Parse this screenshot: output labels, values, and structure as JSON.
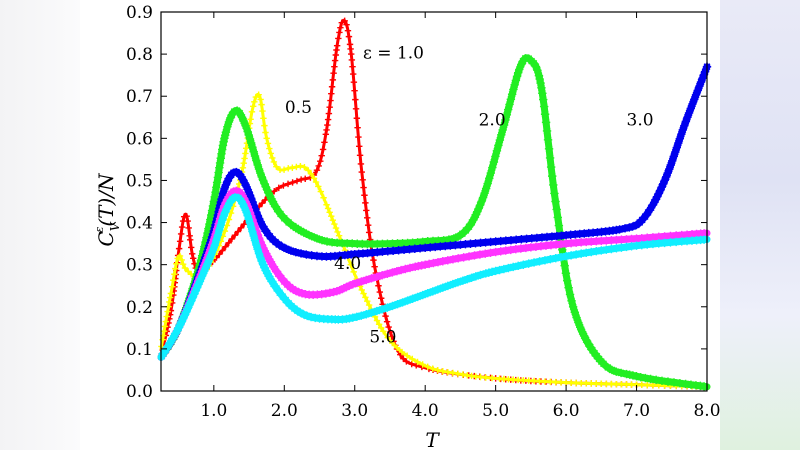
{
  "chart_data": {
    "type": "line",
    "title": "",
    "xlabel": "T",
    "ylabel": "C_V^ε(T)/N",
    "xlim": [
      0.25,
      8.0
    ],
    "ylim": [
      0.0,
      0.9
    ],
    "xticks": [
      "1.0",
      "2.0",
      "3.0",
      "4.0",
      "5.0",
      "6.0",
      "7.0",
      "8.0"
    ],
    "yticks": [
      "0.0",
      "0.1",
      "0.2",
      "0.3",
      "0.4",
      "0.5",
      "0.6",
      "0.7",
      "0.8",
      "0.9"
    ],
    "series": [
      {
        "name": "ε = 1.0",
        "color": "#ff0000",
        "marker": "plus",
        "points": [
          [
            0.25,
            0.08
          ],
          [
            0.4,
            0.2
          ],
          [
            0.5,
            0.33
          ],
          [
            0.6,
            0.42
          ],
          [
            0.7,
            0.32
          ],
          [
            0.8,
            0.28
          ],
          [
            1.0,
            0.31
          ],
          [
            1.3,
            0.37
          ],
          [
            1.6,
            0.43
          ],
          [
            1.9,
            0.48
          ],
          [
            2.2,
            0.5
          ],
          [
            2.45,
            0.52
          ],
          [
            2.6,
            0.62
          ],
          [
            2.75,
            0.82
          ],
          [
            2.85,
            0.88
          ],
          [
            2.95,
            0.8
          ],
          [
            3.1,
            0.52
          ],
          [
            3.3,
            0.28
          ],
          [
            3.6,
            0.1
          ],
          [
            4.0,
            0.055
          ],
          [
            5.0,
            0.03
          ],
          [
            6.0,
            0.02
          ],
          [
            7.0,
            0.015
          ],
          [
            8.0,
            0.01
          ]
        ]
      },
      {
        "name": "0.5",
        "color": "#ffff00",
        "marker": "plus",
        "points": [
          [
            0.25,
            0.1
          ],
          [
            0.4,
            0.24
          ],
          [
            0.5,
            0.32
          ],
          [
            0.6,
            0.29
          ],
          [
            0.8,
            0.27
          ],
          [
            1.0,
            0.32
          ],
          [
            1.2,
            0.4
          ],
          [
            1.4,
            0.52
          ],
          [
            1.55,
            0.67
          ],
          [
            1.65,
            0.7
          ],
          [
            1.75,
            0.6
          ],
          [
            1.9,
            0.53
          ],
          [
            2.1,
            0.53
          ],
          [
            2.3,
            0.53
          ],
          [
            2.5,
            0.48
          ],
          [
            2.8,
            0.36
          ],
          [
            3.1,
            0.24
          ],
          [
            3.5,
            0.12
          ],
          [
            4.0,
            0.06
          ],
          [
            4.5,
            0.04
          ],
          [
            5.0,
            0.03
          ],
          [
            6.0,
            0.02
          ],
          [
            7.0,
            0.015
          ],
          [
            8.0,
            0.01
          ]
        ]
      },
      {
        "name": "2.0",
        "color": "#22ee22",
        "marker": "star",
        "points": [
          [
            0.25,
            0.08
          ],
          [
            0.5,
            0.15
          ],
          [
            0.8,
            0.3
          ],
          [
            1.0,
            0.45
          ],
          [
            1.15,
            0.6
          ],
          [
            1.3,
            0.665
          ],
          [
            1.45,
            0.63
          ],
          [
            1.7,
            0.5
          ],
          [
            2.0,
            0.41
          ],
          [
            2.5,
            0.36
          ],
          [
            3.0,
            0.35
          ],
          [
            3.5,
            0.35
          ],
          [
            4.0,
            0.355
          ],
          [
            4.5,
            0.37
          ],
          [
            4.8,
            0.45
          ],
          [
            5.1,
            0.62
          ],
          [
            5.35,
            0.77
          ],
          [
            5.5,
            0.785
          ],
          [
            5.65,
            0.72
          ],
          [
            5.85,
            0.45
          ],
          [
            6.1,
            0.2
          ],
          [
            6.5,
            0.07
          ],
          [
            7.0,
            0.035
          ],
          [
            8.0,
            0.01
          ]
        ]
      },
      {
        "name": "3.0",
        "color": "#0000ee",
        "marker": "star",
        "points": [
          [
            0.25,
            0.08
          ],
          [
            0.5,
            0.15
          ],
          [
            0.8,
            0.28
          ],
          [
            1.0,
            0.38
          ],
          [
            1.15,
            0.48
          ],
          [
            1.3,
            0.52
          ],
          [
            1.45,
            0.49
          ],
          [
            1.7,
            0.39
          ],
          [
            2.0,
            0.34
          ],
          [
            2.5,
            0.32
          ],
          [
            3.0,
            0.325
          ],
          [
            4.0,
            0.34
          ],
          [
            5.0,
            0.355
          ],
          [
            6.0,
            0.37
          ],
          [
            6.8,
            0.385
          ],
          [
            7.1,
            0.41
          ],
          [
            7.4,
            0.5
          ],
          [
            7.7,
            0.64
          ],
          [
            8.0,
            0.77
          ]
        ]
      },
      {
        "name": "4.0",
        "color": "#ff33ff",
        "marker": "star",
        "points": [
          [
            0.25,
            0.08
          ],
          [
            0.5,
            0.15
          ],
          [
            0.8,
            0.27
          ],
          [
            1.0,
            0.36
          ],
          [
            1.15,
            0.44
          ],
          [
            1.3,
            0.475
          ],
          [
            1.45,
            0.45
          ],
          [
            1.7,
            0.34
          ],
          [
            2.0,
            0.26
          ],
          [
            2.3,
            0.23
          ],
          [
            2.7,
            0.235
          ],
          [
            3.0,
            0.255
          ],
          [
            3.5,
            0.28
          ],
          [
            4.0,
            0.3
          ],
          [
            5.0,
            0.33
          ],
          [
            6.0,
            0.35
          ],
          [
            7.0,
            0.362
          ],
          [
            8.0,
            0.375
          ]
        ]
      },
      {
        "name": "5.0",
        "color": "#11eeff",
        "marker": "star",
        "points": [
          [
            0.25,
            0.08
          ],
          [
            0.5,
            0.15
          ],
          [
            0.8,
            0.26
          ],
          [
            1.0,
            0.34
          ],
          [
            1.15,
            0.42
          ],
          [
            1.3,
            0.46
          ],
          [
            1.45,
            0.43
          ],
          [
            1.7,
            0.3
          ],
          [
            2.0,
            0.22
          ],
          [
            2.3,
            0.18
          ],
          [
            2.7,
            0.17
          ],
          [
            3.0,
            0.175
          ],
          [
            3.5,
            0.2
          ],
          [
            4.0,
            0.23
          ],
          [
            4.5,
            0.26
          ],
          [
            5.0,
            0.285
          ],
          [
            6.0,
            0.32
          ],
          [
            7.0,
            0.345
          ],
          [
            8.0,
            0.36
          ]
        ]
      }
    ],
    "annotations": [
      {
        "text": "ε = 1.0",
        "x": 3.55,
        "y": 0.79
      },
      {
        "text": "0.5",
        "x": 2.2,
        "y": 0.66
      },
      {
        "text": "2.0",
        "x": 4.95,
        "y": 0.63
      },
      {
        "text": "3.0",
        "x": 7.05,
        "y": 0.63
      },
      {
        "text": "4.0",
        "x": 2.9,
        "y": 0.29
      },
      {
        "text": "5.0",
        "x": 3.4,
        "y": 0.115
      }
    ],
    "grid": false,
    "legend": "none"
  }
}
